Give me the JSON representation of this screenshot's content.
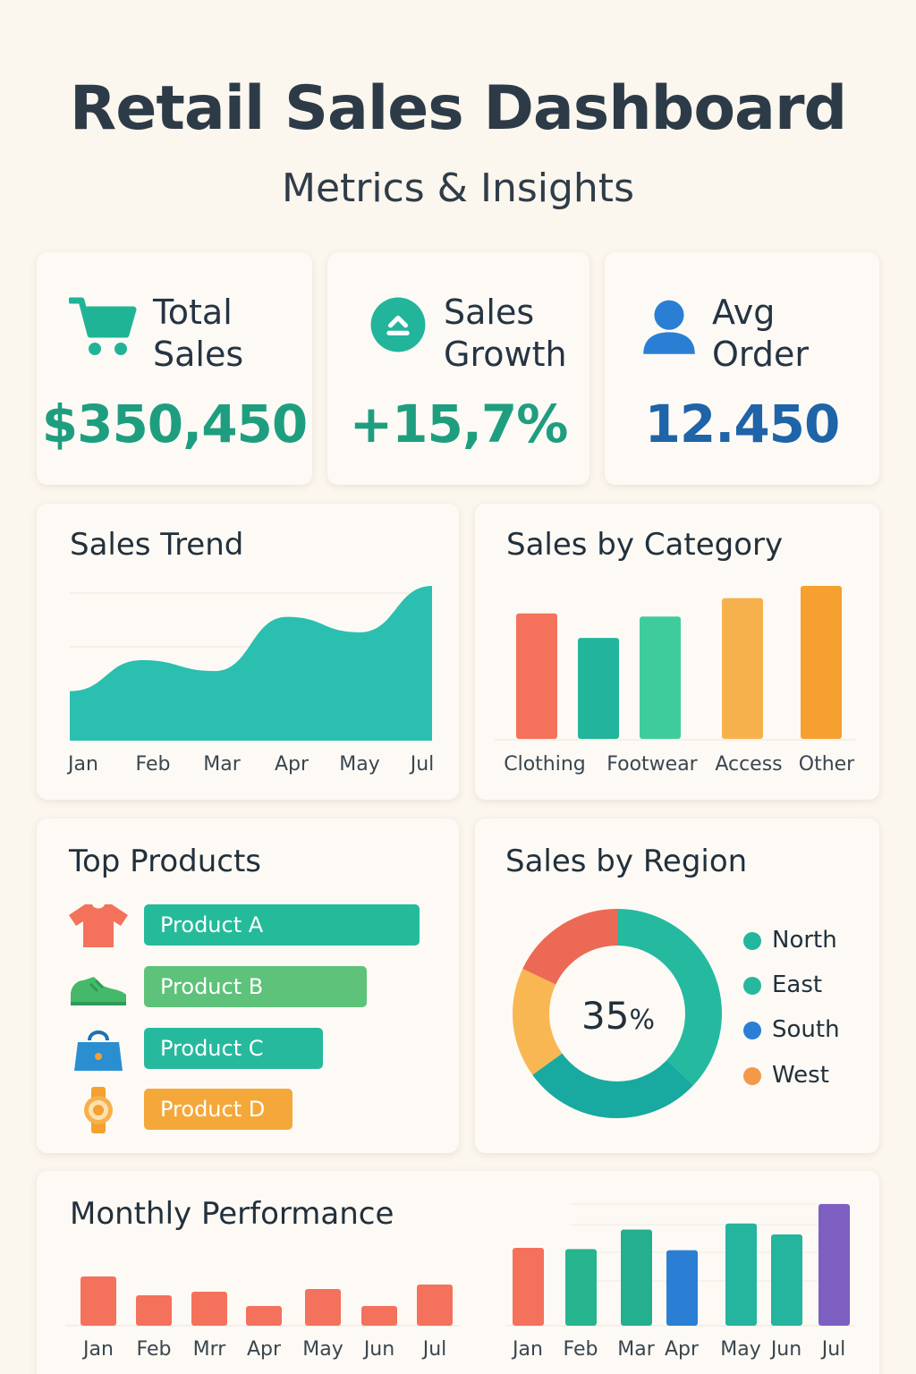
{
  "header": {
    "title": "Retail Sales Dashboard",
    "subtitle": "Metrics & Insights"
  },
  "kpis": [
    {
      "label": "Total Sales",
      "value": "$350,450",
      "icon": "shopping-cart-icon",
      "color": "#1e9e7f"
    },
    {
      "label": "Sales Growth",
      "value": "+15,7%",
      "icon": "growth-arrow-icon",
      "color": "#1e9e7f"
    },
    {
      "label": "Avg Order",
      "value": "12.450",
      "icon": "user-icon",
      "color": "#1f63a8"
    }
  ],
  "sales_trend": {
    "title": "Sales Trend",
    "chart_data": {
      "type": "area",
      "categories": [
        "Jan",
        "Feb",
        "Mar",
        "Apr",
        "May",
        "Jul"
      ],
      "values": [
        32,
        52,
        45,
        80,
        70,
        100
      ],
      "grid": true,
      "color": "#2bbfb0"
    }
  },
  "sales_by_category": {
    "title": "Sales by Category",
    "chart_data": {
      "type": "bar",
      "categories": [
        "Clothing",
        "Footwear",
        "Access",
        "Other"
      ],
      "bars": [
        {
          "category": "Clothing",
          "value": 82,
          "color": "#f4715b"
        },
        {
          "category": "Footwear",
          "value": 66,
          "color": "#22b59c"
        },
        {
          "category": "Footwear",
          "value": 80,
          "color": "#3fcc9d"
        },
        {
          "category": "Access",
          "value": 92,
          "color": "#f7b14c"
        },
        {
          "category": "Other",
          "value": 100,
          "color": "#f5a030"
        }
      ]
    }
  },
  "top_products": {
    "title": "Top Products",
    "chart_data": {
      "type": "bar",
      "items": [
        {
          "label": "Product A",
          "value": 100,
          "color": "#25bb9a",
          "icon": "t-shirt-icon"
        },
        {
          "label": "Product B",
          "value": 81,
          "color": "#5ec27a",
          "icon": "sneaker-icon"
        },
        {
          "label": "Product C",
          "value": 65,
          "color": "#27b99d",
          "icon": "handbag-icon"
        },
        {
          "label": "Product D",
          "value": 54,
          "color": "#f5a83a",
          "icon": "watch-icon"
        }
      ]
    }
  },
  "sales_by_region": {
    "title": "Sales by Region",
    "center_value": "35",
    "center_unit": "%",
    "chart_data": {
      "type": "pie",
      "segments": [
        {
          "value": 37,
          "color": "#25b9a0"
        },
        {
          "value": 28,
          "color": "#18aaa0"
        },
        {
          "value": 17,
          "color": "#f9b754"
        },
        {
          "value": 18,
          "color": "#ec6a55"
        }
      ],
      "legend": [
        {
          "label": "North",
          "color": "#23b69f"
        },
        {
          "label": "East",
          "color": "#27b99d"
        },
        {
          "label": "South",
          "color": "#2a7fd4"
        },
        {
          "label": "West",
          "color": "#f29a4a"
        }
      ]
    }
  },
  "monthly_performance": {
    "title": "Monthly Performance",
    "chart_left": {
      "type": "bar",
      "categories": [
        "Jan",
        "Feb",
        "Mrr",
        "Apr",
        "May",
        "Jun",
        "Jul"
      ],
      "values": [
        55,
        34,
        38,
        22,
        41,
        22,
        46
      ],
      "color": "#f4715b"
    },
    "chart_right": {
      "type": "bar",
      "categories": [
        "Jan",
        "Feb",
        "Mar",
        "Apr",
        "May",
        "Jun",
        "Jul"
      ],
      "values": [
        64,
        63,
        79,
        62,
        84,
        75,
        100
      ],
      "colors": [
        "#f4715b",
        "#27b58f",
        "#24b08e",
        "#2a7fd4",
        "#25b49d",
        "#25b49d",
        "#7d5fc2"
      ]
    }
  }
}
